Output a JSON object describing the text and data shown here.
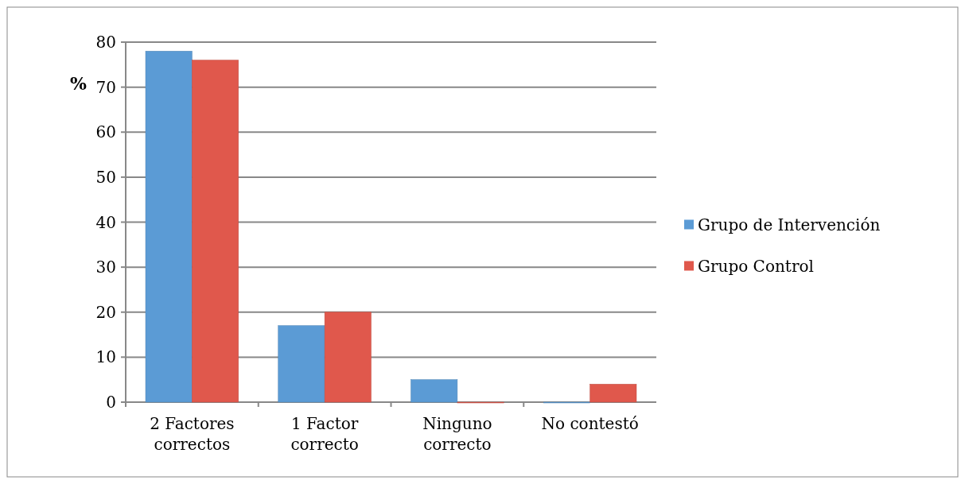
{
  "chart_data": {
    "type": "bar",
    "ylabel": "%",
    "categories": [
      "2 Factores correctos",
      "1 Factor correcto",
      "Ninguno correcto",
      "No contestó"
    ],
    "series": [
      {
        "name": "Grupo de Intervención",
        "color": "#5b9bd5",
        "values": [
          78,
          17,
          5,
          0
        ]
      },
      {
        "name": "Grupo Control",
        "color": "#e0584c",
        "values": [
          76,
          20,
          0,
          4
        ]
      }
    ],
    "ylim": [
      0,
      80
    ],
    "yticks": [
      0,
      10,
      20,
      30,
      40,
      50,
      60,
      70,
      80
    ],
    "grid": "y",
    "legend": "right"
  }
}
